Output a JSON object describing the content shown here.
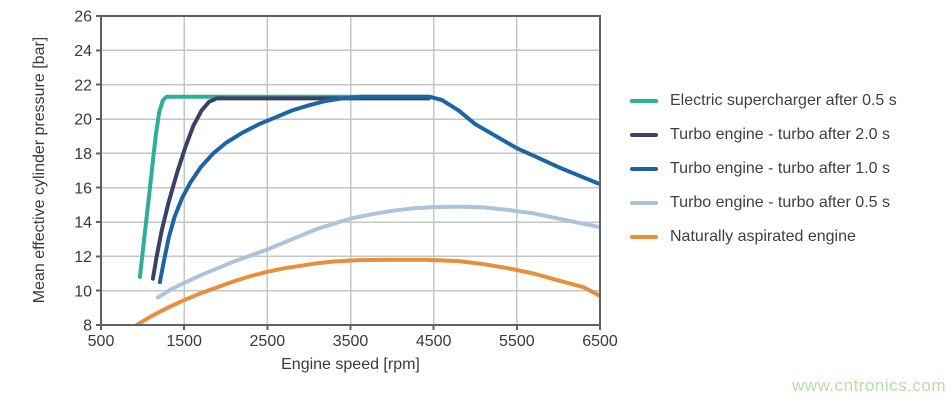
{
  "watermark": {
    "text": "www.cntronics.com",
    "color": "#b9dcab"
  },
  "style": {
    "grid_color": "#c3c7c7",
    "border_color": "#5d6165",
    "text_color": "#3a3a3a"
  },
  "chart_data": {
    "type": "line",
    "title": "",
    "xlabel": "Engine speed [rpm]",
    "ylabel": "Mean effective cylinder pressure [bar]",
    "xlim": [
      500,
      6500
    ],
    "ylim": [
      8,
      26
    ],
    "xticks": [
      500,
      1500,
      2500,
      3500,
      4500,
      5500,
      6500
    ],
    "yticks": [
      8,
      10,
      12,
      14,
      16,
      18,
      20,
      22,
      24,
      26
    ],
    "grid": true,
    "legend_position": "right",
    "series": [
      {
        "name": "Electric supercharger after 0.5 s",
        "color": "#2fae9a",
        "points": [
          [
            968,
            10.8
          ],
          [
            1000,
            12.2
          ],
          [
            1040,
            13.9
          ],
          [
            1080,
            15.6
          ],
          [
            1120,
            17.4
          ],
          [
            1160,
            19.1
          ],
          [
            1200,
            20.4
          ],
          [
            1245,
            21.1
          ],
          [
            1290,
            21.3
          ],
          [
            1400,
            21.3
          ],
          [
            4413,
            21.3
          ]
        ]
      },
      {
        "name": "Turbo engine - turbo after 2.0 s",
        "color": "#3b4066",
        "points": [
          [
            1124,
            10.7
          ],
          [
            1170,
            12.0
          ],
          [
            1230,
            13.5
          ],
          [
            1310,
            15.1
          ],
          [
            1410,
            16.8
          ],
          [
            1510,
            18.3
          ],
          [
            1610,
            19.6
          ],
          [
            1710,
            20.5
          ],
          [
            1800,
            21.0
          ],
          [
            1890,
            21.2
          ],
          [
            4440,
            21.2
          ]
        ]
      },
      {
        "name": "Turbo engine - turbo after 1.0 s",
        "color": "#1d65a2",
        "points": [
          [
            1208,
            10.5
          ],
          [
            1255,
            11.7
          ],
          [
            1315,
            13.1
          ],
          [
            1385,
            14.3
          ],
          [
            1475,
            15.4
          ],
          [
            1575,
            16.3
          ],
          [
            1700,
            17.2
          ],
          [
            1850,
            18.0
          ],
          [
            2000,
            18.6
          ],
          [
            2200,
            19.2
          ],
          [
            2400,
            19.7
          ],
          [
            2600,
            20.1
          ],
          [
            2800,
            20.5
          ],
          [
            3000,
            20.8
          ],
          [
            3200,
            21.05
          ],
          [
            3400,
            21.2
          ],
          [
            3650,
            21.3
          ],
          [
            4450,
            21.3
          ],
          [
            4600,
            21.1
          ],
          [
            4800,
            20.5
          ],
          [
            5000,
            19.7
          ],
          [
            5250,
            19.0
          ],
          [
            5500,
            18.3
          ],
          [
            5750,
            17.75
          ],
          [
            6000,
            17.2
          ],
          [
            6250,
            16.7
          ],
          [
            6500,
            16.2
          ]
        ]
      },
      {
        "name": "Turbo engine - turbo after 0.5 s",
        "color": "#abc4dc",
        "points": [
          [
            1184,
            9.6
          ],
          [
            1350,
            10.1
          ],
          [
            1500,
            10.45
          ],
          [
            1700,
            10.9
          ],
          [
            1900,
            11.3
          ],
          [
            2100,
            11.7
          ],
          [
            2300,
            12.05
          ],
          [
            2500,
            12.4
          ],
          [
            2700,
            12.8
          ],
          [
            2900,
            13.2
          ],
          [
            3100,
            13.6
          ],
          [
            3300,
            13.9
          ],
          [
            3500,
            14.2
          ],
          [
            3750,
            14.45
          ],
          [
            4000,
            14.65
          ],
          [
            4250,
            14.8
          ],
          [
            4500,
            14.87
          ],
          [
            4800,
            14.9
          ],
          [
            5100,
            14.85
          ],
          [
            5400,
            14.7
          ],
          [
            5700,
            14.5
          ],
          [
            6000,
            14.2
          ],
          [
            6250,
            13.95
          ],
          [
            6500,
            13.7
          ]
        ]
      },
      {
        "name": "Naturally aspirated engine",
        "color": "#e78f3c",
        "points": [
          [
            930,
            8.0
          ],
          [
            1100,
            8.5
          ],
          [
            1300,
            9.0
          ],
          [
            1500,
            9.45
          ],
          [
            1700,
            9.85
          ],
          [
            1900,
            10.2
          ],
          [
            2100,
            10.55
          ],
          [
            2300,
            10.85
          ],
          [
            2500,
            11.1
          ],
          [
            2700,
            11.3
          ],
          [
            2900,
            11.45
          ],
          [
            3100,
            11.6
          ],
          [
            3300,
            11.7
          ],
          [
            3600,
            11.78
          ],
          [
            4000,
            11.8
          ],
          [
            4400,
            11.8
          ],
          [
            4800,
            11.72
          ],
          [
            5100,
            11.55
          ],
          [
            5400,
            11.3
          ],
          [
            5700,
            11.0
          ],
          [
            6000,
            10.6
          ],
          [
            6300,
            10.2
          ],
          [
            6500,
            9.7
          ]
        ]
      }
    ]
  }
}
